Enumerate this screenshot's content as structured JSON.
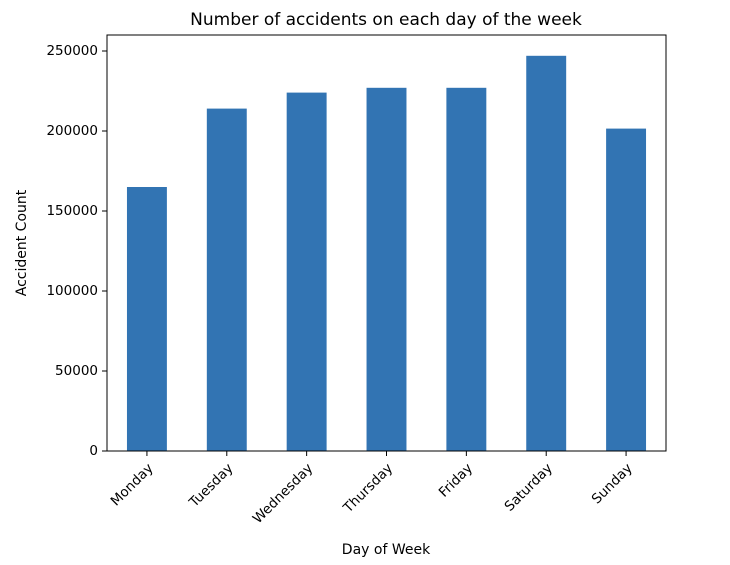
{
  "chart_data": {
    "type": "bar",
    "title": "Number of accidents on each day of the week",
    "xlabel": "Day of Week",
    "ylabel": "Accident Count",
    "categories": [
      "Monday",
      "Tuesday",
      "Wednesday",
      "Thursday",
      "Friday",
      "Saturday",
      "Sunday"
    ],
    "values": [
      165000,
      214000,
      224000,
      227000,
      227000,
      247000,
      201500
    ],
    "ylim": [
      0,
      260000
    ],
    "yticks": [
      0,
      50000,
      100000,
      150000,
      200000,
      250000
    ],
    "ytick_labels": [
      "0",
      "50000",
      "100000",
      "150000",
      "200000",
      "250000"
    ],
    "bar_color": "#3274b3",
    "grid": false,
    "legend": "none"
  }
}
